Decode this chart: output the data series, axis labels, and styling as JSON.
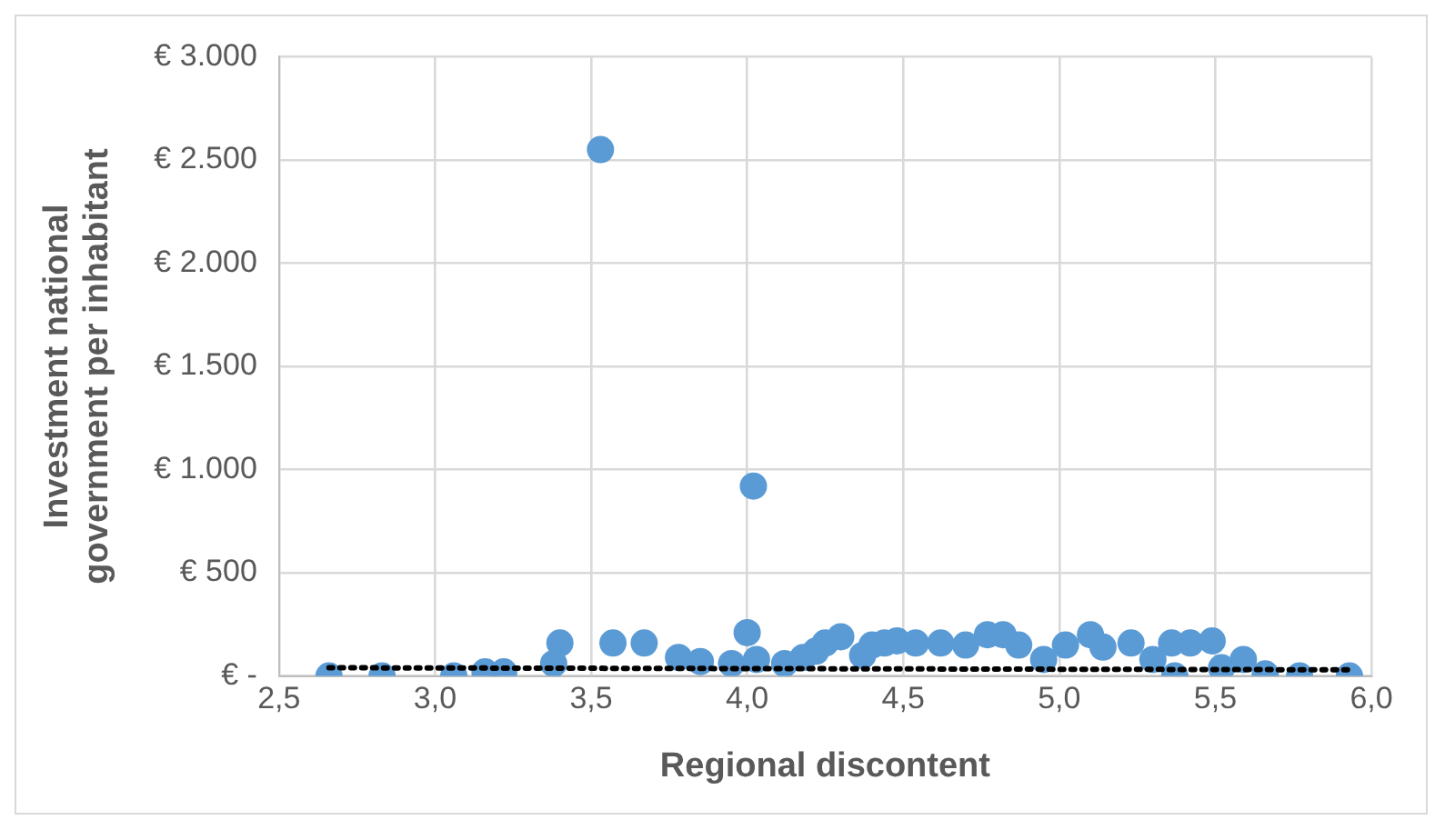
{
  "chart_data": {
    "type": "scatter",
    "xlabel": "Regional discontent",
    "ylabel": "Investment national government per inhabitant",
    "xlim": [
      2.5,
      6.0
    ],
    "xticks": [
      {
        "value": 2.5,
        "label": "2,5"
      },
      {
        "value": 3.0,
        "label": "3,0"
      },
      {
        "value": 3.5,
        "label": "3,5"
      },
      {
        "value": 4.0,
        "label": "4,0"
      },
      {
        "value": 4.5,
        "label": "4,5"
      },
      {
        "value": 5.0,
        "label": "5,0"
      },
      {
        "value": 5.5,
        "label": "5,5"
      },
      {
        "value": 6.0,
        "label": "6,0"
      }
    ],
    "ylim": [
      0,
      3000
    ],
    "yticks": [
      {
        "value": 0,
        "label": "€ -"
      },
      {
        "value": 500,
        "label": "€ 500"
      },
      {
        "value": 1000,
        "label": "€ 1.000"
      },
      {
        "value": 1500,
        "label": "€ 1.500"
      },
      {
        "value": 2000,
        "label": "€ 2.000"
      },
      {
        "value": 2500,
        "label": "€ 2.500"
      },
      {
        "value": 3000,
        "label": "€ 3.000"
      }
    ],
    "grid": true,
    "marker": "circle",
    "series": [
      {
        "type": "scatter",
        "color": "#5b9bd5",
        "x": [
          2.66,
          2.83,
          3.06,
          3.16,
          3.22,
          3.38,
          3.4,
          3.53,
          3.57,
          3.67,
          3.78,
          3.85,
          3.95,
          4.0,
          4.02,
          4.03,
          4.12,
          4.18,
          4.22,
          4.25,
          4.3,
          4.37,
          4.4,
          4.44,
          4.48,
          4.54,
          4.62,
          4.7,
          4.77,
          4.82,
          4.87,
          4.95,
          5.02,
          5.1,
          5.14,
          5.23,
          5.3,
          5.36,
          5.37,
          5.42,
          5.49,
          5.52,
          5.59,
          5.66,
          5.77,
          5.93
        ],
        "values": [
          0,
          0,
          0,
          20,
          20,
          60,
          160,
          2550,
          160,
          160,
          90,
          70,
          60,
          210,
          920,
          80,
          60,
          90,
          120,
          160,
          190,
          100,
          150,
          160,
          170,
          160,
          160,
          150,
          200,
          200,
          150,
          80,
          150,
          200,
          140,
          160,
          80,
          160,
          0,
          160,
          170,
          40,
          80,
          10,
          0,
          0
        ]
      },
      {
        "type": "line",
        "color": "#000000",
        "line_style": "dotted",
        "marker": "none",
        "x": [
          2.66,
          5.93
        ],
        "values": [
          40,
          30
        ]
      }
    ]
  }
}
